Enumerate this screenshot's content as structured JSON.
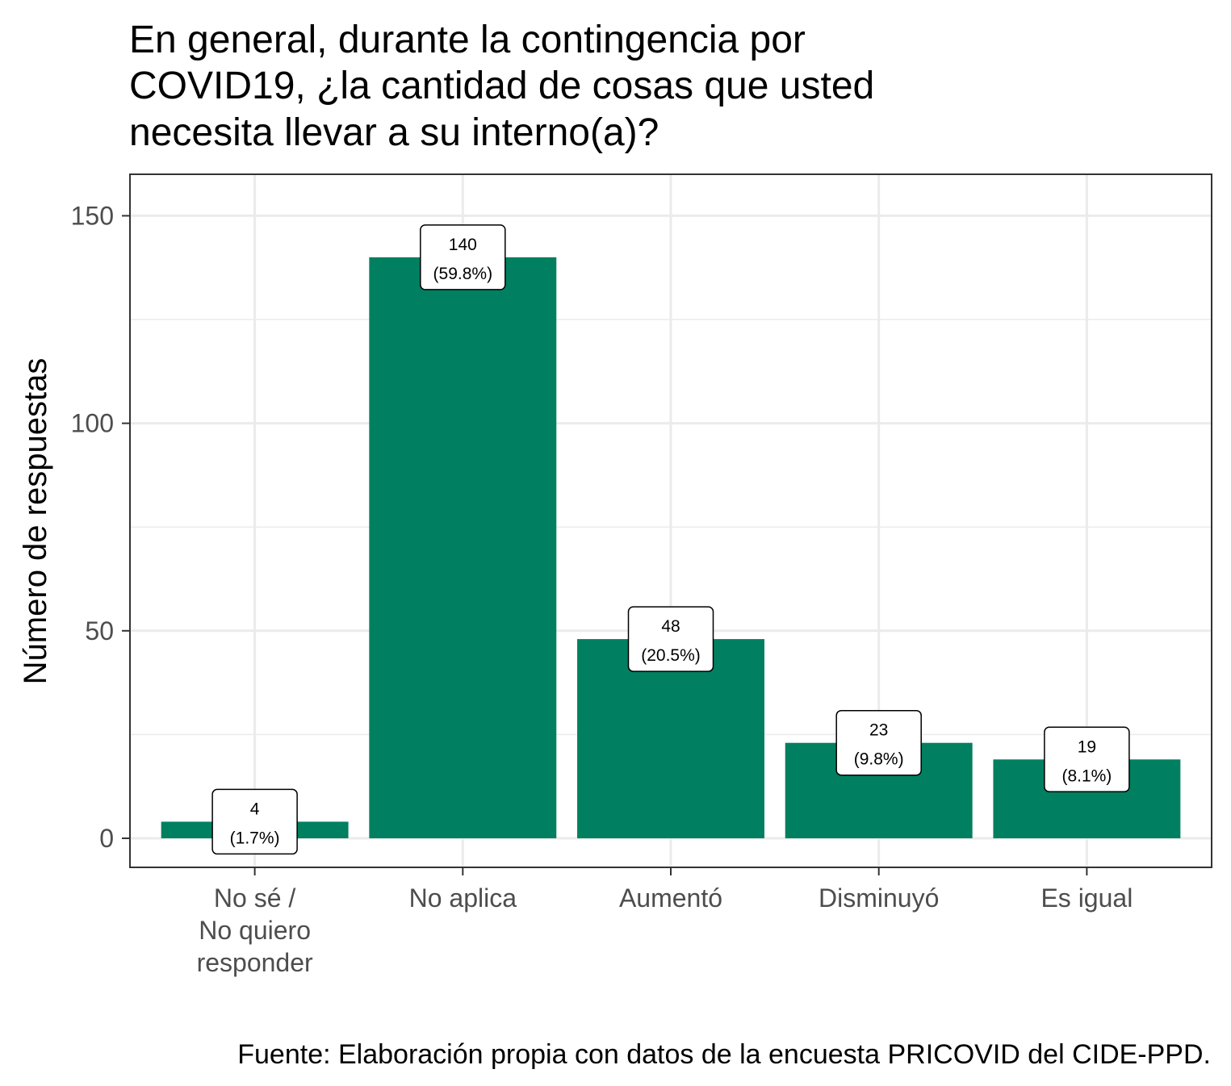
{
  "chart_data": {
    "type": "bar",
    "title": "En general, durante la contingencia por COVID19, ¿la cantidad de cosas que usted necesita llevar a su interno(a)?",
    "title_lines": [
      "En general, durante la contingencia por",
      "COVID19, ¿la cantidad de cosas que usted",
      "necesita llevar a su interno(a)?"
    ],
    "xlabel": "",
    "ylabel": "Número de respuestas",
    "categories": [
      [
        "No sé /",
        "No quiero",
        "responder"
      ],
      [
        "No aplica"
      ],
      [
        "Aumentó"
      ],
      [
        "Disminuyó"
      ],
      [
        "Es igual"
      ]
    ],
    "values": [
      4,
      140,
      48,
      23,
      19
    ],
    "percent_labels": [
      "(1.7%)",
      "(59.8%)",
      "(20.5%)",
      "(9.8%)",
      "(8.1%)"
    ],
    "count_labels": [
      "4",
      "140",
      "48",
      "23",
      "19"
    ],
    "ylim": [
      -7,
      160
    ],
    "yticks": [
      0,
      50,
      100,
      150
    ],
    "ytick_labels": [
      "0",
      "50",
      "100",
      "150"
    ],
    "grid": true,
    "legend": "none",
    "bar_color": "#008060",
    "caption": "Fuente: Elaboración propia con datos de la encuesta PRICOVID del CIDE-PPD."
  }
}
